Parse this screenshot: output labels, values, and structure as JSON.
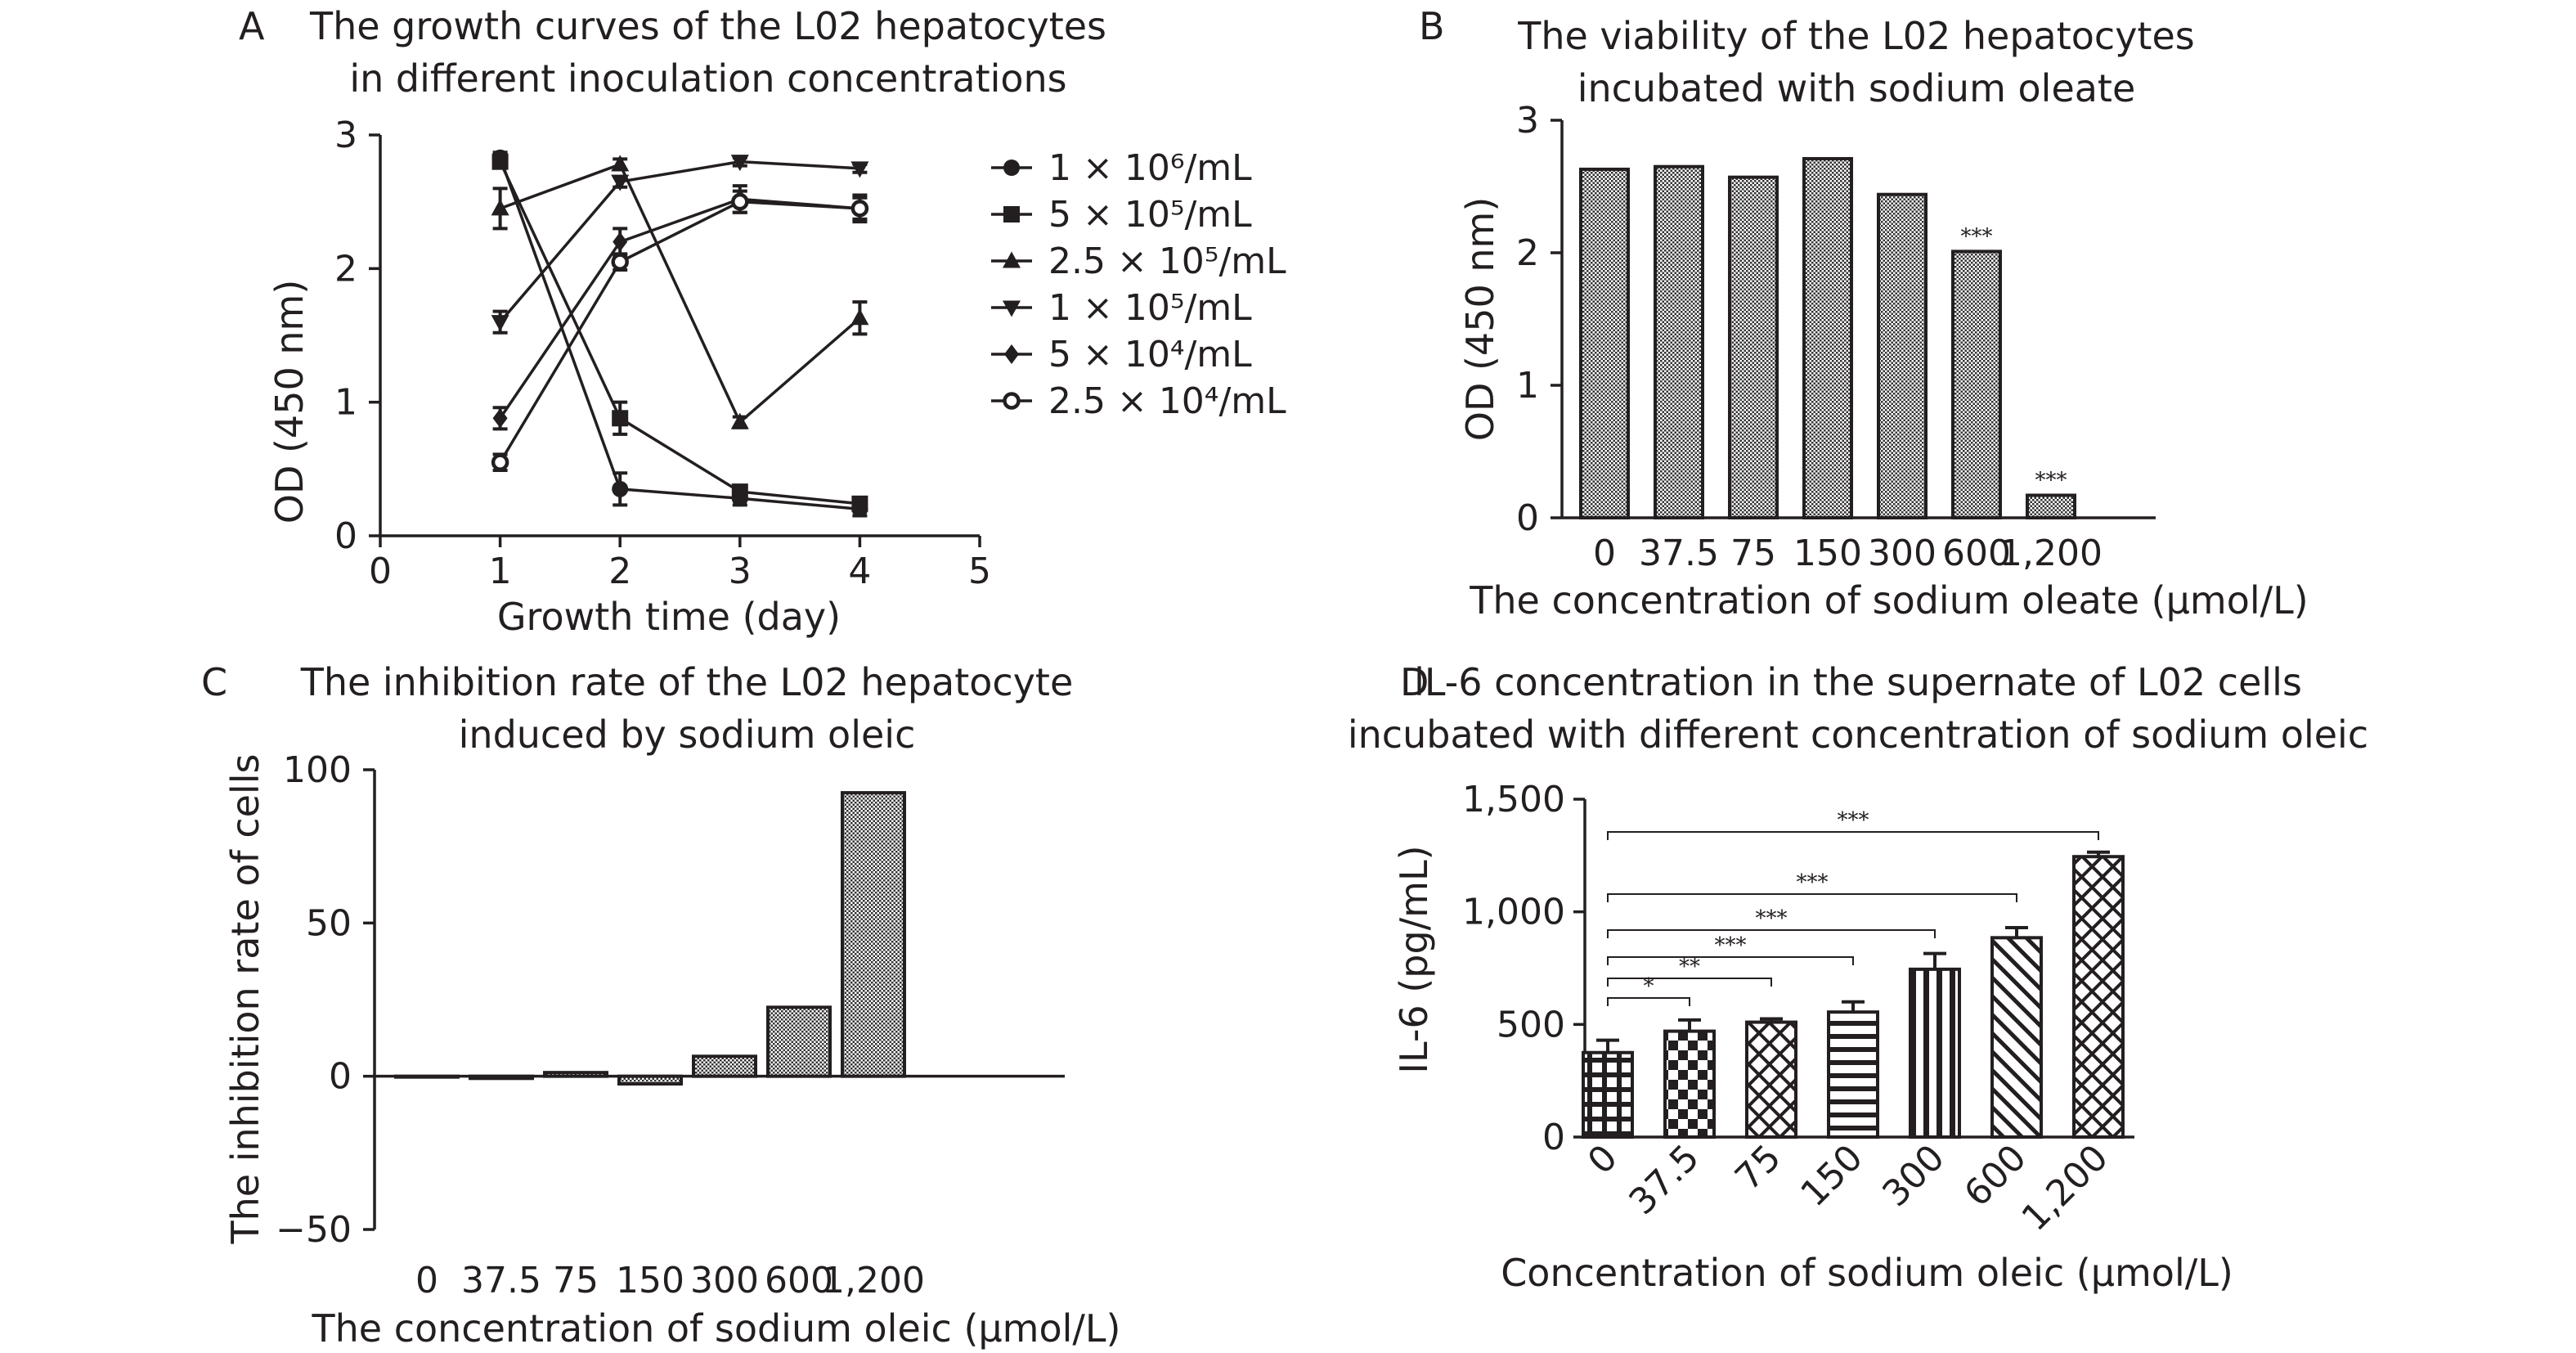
{
  "panels": {
    "A": {
      "letter": "A",
      "title": [
        "The growth curves of the L02 hepatocytes",
        "in different inoculation concentrations"
      ],
      "ylabel": "OD (450 nm)",
      "xlabel": "Growth time (day)"
    },
    "B": {
      "letter": "B",
      "title": [
        "The viability of the L02 hepatocytes",
        "incubated with sodium oleate"
      ],
      "ylabel": "OD (450 nm)",
      "xlabel": "The concentration of sodium oleate (µmol/L)"
    },
    "C": {
      "letter": "C",
      "title": [
        "The inhibition rate of the L02 hepatocyte",
        "induced by sodium oleic"
      ],
      "ylabel": "The inhibition rate of cells",
      "xlabel": "The concentration of sodium oleic (µmol/L)"
    },
    "D": {
      "letter": "D",
      "title": [
        "lL-6 concentration in the supernate of L02 cells",
        "incubated with different concentration of sodium oleic"
      ],
      "ylabel": "IL-6 (pg/mL)",
      "xlabel": "Concentration of sodium oleic (µmol/L)"
    }
  },
  "chart_data": [
    {
      "id": "A",
      "type": "line",
      "title": "The growth curves of the L02 hepatocytes in different inoculation concentrations",
      "xlabel": "Growth time (day)",
      "ylabel": "OD (450 nm)",
      "xlim": [
        0,
        5
      ],
      "ylim": [
        0,
        3
      ],
      "xticks": [
        "0",
        "1",
        "2",
        "3",
        "4",
        "5"
      ],
      "yticks": [
        "0",
        "1",
        "2",
        "3"
      ],
      "legend_position": "right",
      "x": [
        1,
        2,
        3,
        4
      ],
      "series": [
        {
          "name": "1 × 10⁶/mL",
          "marker": "circle",
          "values": [
            2.83,
            0.35,
            0.28,
            0.2
          ],
          "errors": [
            0.04,
            0.12,
            0.05,
            0.05
          ]
        },
        {
          "name": "5 × 10⁵/mL",
          "marker": "square",
          "values": [
            2.8,
            0.88,
            0.33,
            0.24
          ],
          "errors": [
            0.04,
            0.12,
            0.04,
            0.04
          ]
        },
        {
          "name": "2.5 × 10⁵/mL",
          "marker": "triangle-up",
          "values": [
            2.45,
            2.78,
            0.85,
            1.63
          ],
          "errors": [
            0.15,
            0.04,
            0.04,
            0.12
          ]
        },
        {
          "name": "1 × 10⁵/mL",
          "marker": "triangle-down",
          "values": [
            1.6,
            2.65,
            2.8,
            2.75
          ],
          "errors": [
            0.08,
            0.04,
            0.03,
            0.03
          ]
        },
        {
          "name": "5 × 10⁴/mL",
          "marker": "diamond",
          "values": [
            0.88,
            2.2,
            2.52,
            2.45
          ],
          "errors": [
            0.08,
            0.1,
            0.1,
            0.1
          ]
        },
        {
          "name": "2.5 × 10⁴/mL",
          "marker": "open-circle",
          "values": [
            0.55,
            2.05,
            2.5,
            2.45
          ],
          "errors": [
            0.06,
            0.06,
            0.08,
            0.08
          ]
        }
      ]
    },
    {
      "id": "B",
      "type": "bar",
      "title": "The viability of the L02 hepatocytes incubated with sodium oleate",
      "xlabel": "The concentration of sodium oleate (µmol/L)",
      "ylabel": "OD (450 nm)",
      "ylim": [
        0,
        3
      ],
      "yticks": [
        "0",
        "1",
        "2",
        "3"
      ],
      "categories": [
        "0",
        "37.5",
        "75",
        "150",
        "300",
        "600",
        "1,200"
      ],
      "values": [
        2.63,
        2.65,
        2.57,
        2.71,
        2.44,
        2.01,
        0.17
      ],
      "annotations": [
        "",
        "",
        "",
        "",
        "",
        "***",
        "***"
      ]
    },
    {
      "id": "C",
      "type": "bar",
      "title": "The inhibition rate of the L02 hepatocyte induced by sodium oleic",
      "xlabel": "The concentration of sodium oleic (µmol/L)",
      "ylabel": "The inhibition rate of cells",
      "ylim": [
        -50,
        100
      ],
      "yticks": [
        "−50",
        "0",
        "50",
        "100"
      ],
      "categories": [
        "0",
        "37.5",
        "75",
        "150",
        "300",
        "600",
        "1,200"
      ],
      "values": [
        0,
        -0.7,
        1.2,
        -2.5,
        6.5,
        22.5,
        92.5
      ]
    },
    {
      "id": "D",
      "type": "bar",
      "title": "lL-6 concentration in the supernate of L02 cells incubated with different concentration of sodium oleic",
      "xlabel": "Concentration of sodium oleic (µmol/L)",
      "ylabel": "IL-6 (pg/mL)",
      "ylim": [
        0,
        1500
      ],
      "yticks": [
        "0",
        "500",
        "1,000",
        "1,500"
      ],
      "categories": [
        "0",
        "37.5",
        "75",
        "150",
        "300",
        "600",
        "1,200"
      ],
      "values": [
        375,
        470,
        510,
        555,
        745,
        885,
        1245
      ],
      "errors": [
        55,
        50,
        15,
        45,
        70,
        45,
        20
      ],
      "comparisons": [
        {
          "to": "37.5",
          "label": "*"
        },
        {
          "to": "75",
          "label": "**"
        },
        {
          "to": "150",
          "label": "***"
        },
        {
          "to": "300",
          "label": "***"
        },
        {
          "to": "600",
          "label": "***"
        },
        {
          "to": "1,200",
          "label": "***"
        }
      ]
    }
  ]
}
